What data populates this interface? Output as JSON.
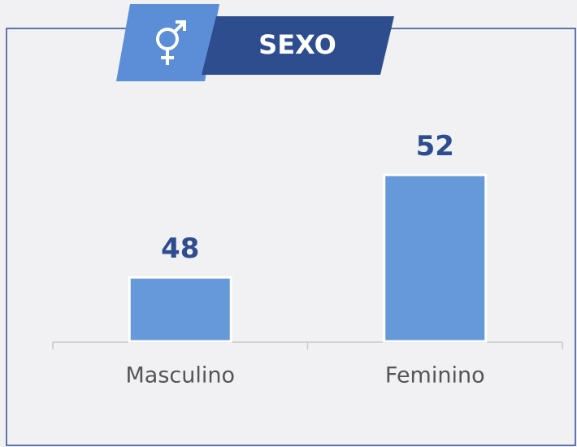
{
  "chart_data": {
    "type": "bar",
    "title": "SEXO",
    "categories": [
      "Masculino",
      "Feminino"
    ],
    "values": [
      48,
      52
    ],
    "color": "#6699d9",
    "ylim": [
      45.5,
      55.5
    ]
  }
}
